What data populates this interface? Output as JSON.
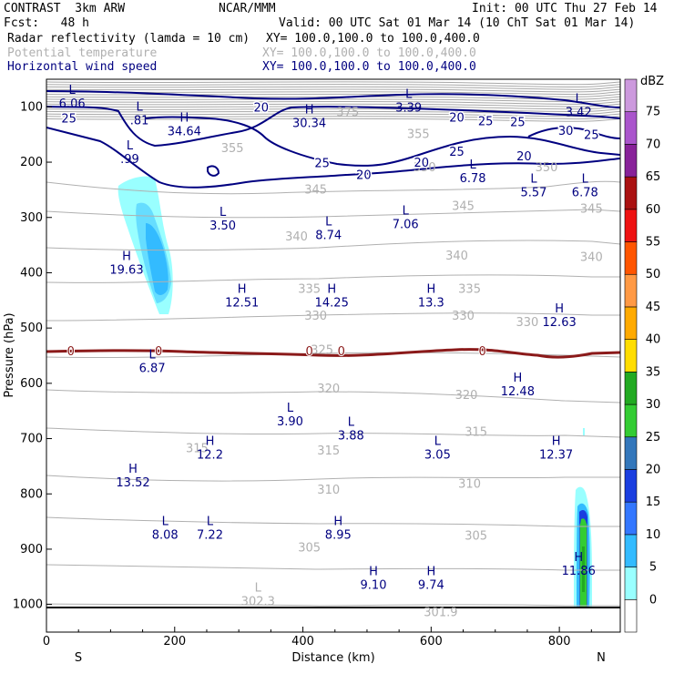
{
  "header": {
    "model_line": "CONTRAST  3km ARW",
    "org": "NCAR/MMM",
    "init": "Init: 00 UTC Thu 27 Feb 14",
    "fcst": "Fcst:   48 h",
    "valid": "Valid: 00 UTC Sat 01 Mar 14 (10 ChT Sat 01 Mar 14)",
    "fields": [
      {
        "name": "Radar reflectivity (lamda = 10 cm)",
        "xy": "XY= 100.0,100.0 to 100.0,400.0",
        "color": "#000000"
      },
      {
        "name": "Potential temperature",
        "xy": "XY= 100.0,100.0 to 100.0,400.0",
        "color": "#b0b0b0"
      },
      {
        "name": "Horizontal wind speed",
        "xy": "XY= 100.0,100.0 to 100.0,400.0",
        "color": "#000080"
      }
    ]
  },
  "chart_data": {
    "type": "cross-section",
    "xlabel": "Distance (km)",
    "ylabel": "Pressure (hPa)",
    "xlim": [
      0,
      895
    ],
    "ylim": [
      1050,
      50
    ],
    "x_ticks": [
      0,
      200,
      400,
      600,
      800
    ],
    "y_ticks": [
      100,
      200,
      300,
      400,
      500,
      600,
      700,
      800,
      900,
      1000
    ],
    "ends": {
      "left": "S",
      "right": "N"
    },
    "colorbar": {
      "unit": "dBZ",
      "levels": [
        "0",
        "5",
        "10",
        "15",
        "20",
        "25",
        "30",
        "35",
        "40",
        "45",
        "50",
        "55",
        "60",
        "65",
        "70",
        "75"
      ],
      "colors": [
        "#ffffff",
        "#99ffff",
        "#33bbff",
        "#3377ff",
        "#1a3ee0",
        "#3377bb",
        "#33cc33",
        "#22aa22",
        "#ffdd00",
        "#ffaa00",
        "#ff9944",
        "#ff5500",
        "#ee1111",
        "#aa1111",
        "#882299",
        "#aa55cc",
        "#cc99dd"
      ]
    },
    "theta_labels": [
      {
        "x": 470,
        "p": 110,
        "text": "375"
      },
      {
        "x": 580,
        "p": 150,
        "text": "355"
      },
      {
        "x": 290,
        "p": 175,
        "text": "355"
      },
      {
        "x": 780,
        "p": 210,
        "text": "350"
      },
      {
        "x": 590,
        "p": 210,
        "text": "350"
      },
      {
        "x": 420,
        "p": 250,
        "text": "345"
      },
      {
        "x": 650,
        "p": 280,
        "text": "345"
      },
      {
        "x": 850,
        "p": 285,
        "text": "345"
      },
      {
        "x": 390,
        "p": 335,
        "text": "340"
      },
      {
        "x": 640,
        "p": 370,
        "text": "340"
      },
      {
        "x": 850,
        "p": 372,
        "text": "340"
      },
      {
        "x": 410,
        "p": 430,
        "text": "335"
      },
      {
        "x": 660,
        "p": 430,
        "text": "335"
      },
      {
        "x": 420,
        "p": 478,
        "text": "330"
      },
      {
        "x": 650,
        "p": 478,
        "text": "330"
      },
      {
        "x": 750,
        "p": 490,
        "text": "330"
      },
      {
        "x": 430,
        "p": 540,
        "text": "325"
      },
      {
        "x": 440,
        "p": 610,
        "text": "320"
      },
      {
        "x": 655,
        "p": 622,
        "text": "320"
      },
      {
        "x": 670,
        "p": 688,
        "text": "315"
      },
      {
        "x": 440,
        "p": 722,
        "text": "315"
      },
      {
        "x": 235,
        "p": 718,
        "text": "315"
      },
      {
        "x": 440,
        "p": 793,
        "text": "310"
      },
      {
        "x": 660,
        "p": 782,
        "text": "310"
      },
      {
        "x": 670,
        "p": 876,
        "text": "305"
      },
      {
        "x": 410,
        "p": 898,
        "text": "305"
      }
    ],
    "wind_labels": [
      {
        "x": 35,
        "p": 120,
        "text": "25"
      },
      {
        "x": 335,
        "p": 100,
        "text": "20"
      },
      {
        "x": 640,
        "p": 118,
        "text": "20"
      },
      {
        "x": 685,
        "p": 125,
        "text": "25"
      },
      {
        "x": 735,
        "p": 127,
        "text": "25"
      },
      {
        "x": 810,
        "p": 142,
        "text": "30"
      },
      {
        "x": 850,
        "p": 150,
        "text": "25"
      },
      {
        "x": 640,
        "p": 180,
        "text": "25"
      },
      {
        "x": 430,
        "p": 201,
        "text": "25"
      },
      {
        "x": 585,
        "p": 200,
        "text": "20"
      },
      {
        "x": 745,
        "p": 188,
        "text": "20"
      },
      {
        "x": 495,
        "p": 222,
        "text": "20"
      }
    ],
    "zero_line_labels": [
      {
        "x": 38,
        "text": "0"
      },
      {
        "x": 175,
        "text": "0"
      },
      {
        "x": 410,
        "text": "0"
      },
      {
        "x": 460,
        "text": "0"
      },
      {
        "x": 680,
        "text": "0"
      }
    ],
    "extrema": [
      {
        "x": 40,
        "p": 80,
        "kind": "L",
        "value": "6.06",
        "color": "navy"
      },
      {
        "x": 145,
        "p": 110,
        "kind": "L",
        "value": ".81",
        "color": "navy"
      },
      {
        "x": 215,
        "p": 130,
        "kind": "H",
        "value": "34.64",
        "color": "navy"
      },
      {
        "x": 130,
        "p": 180,
        "kind": "L",
        "value": ".99",
        "color": "navy"
      },
      {
        "x": 410,
        "p": 115,
        "kind": "H",
        "value": "30.34",
        "color": "navy"
      },
      {
        "x": 565,
        "p": 87,
        "kind": "L",
        "value": "3.39",
        "color": "navy"
      },
      {
        "x": 830,
        "p": 95,
        "kind": "L",
        "value": "3.42",
        "color": "navy"
      },
      {
        "x": 665,
        "p": 215,
        "kind": "L",
        "value": "6.78",
        "color": "navy"
      },
      {
        "x": 760,
        "p": 240,
        "kind": "L",
        "value": "5.57",
        "color": "navy"
      },
      {
        "x": 840,
        "p": 240,
        "kind": "L",
        "value": "6.78",
        "color": "navy"
      },
      {
        "x": 275,
        "p": 300,
        "kind": "L",
        "value": "3.50",
        "color": "navy"
      },
      {
        "x": 440,
        "p": 318,
        "kind": "L",
        "value": "8.74",
        "color": "navy"
      },
      {
        "x": 560,
        "p": 298,
        "kind": "L",
        "value": "7.06",
        "color": "navy"
      },
      {
        "x": 125,
        "p": 380,
        "kind": "H",
        "value": "19.63",
        "color": "navy"
      },
      {
        "x": 305,
        "p": 440,
        "kind": "H",
        "value": "12.51",
        "color": "navy"
      },
      {
        "x": 445,
        "p": 440,
        "kind": "H",
        "value": "14.25",
        "color": "navy"
      },
      {
        "x": 600,
        "p": 440,
        "kind": "H",
        "value": "13.3",
        "color": "navy"
      },
      {
        "x": 800,
        "p": 475,
        "kind": "H",
        "value": "12.63",
        "color": "navy"
      },
      {
        "x": 165,
        "p": 558,
        "kind": "L",
        "value": "6.87",
        "color": "navy"
      },
      {
        "x": 735,
        "p": 600,
        "kind": "H",
        "value": "12.48",
        "color": "navy"
      },
      {
        "x": 380,
        "p": 655,
        "kind": "L",
        "value": "3.90",
        "color": "navy"
      },
      {
        "x": 475,
        "p": 680,
        "kind": "L",
        "value": "3.88",
        "color": "navy"
      },
      {
        "x": 255,
        "p": 715,
        "kind": "H",
        "value": "12.2",
        "color": "navy"
      },
      {
        "x": 610,
        "p": 715,
        "kind": "L",
        "value": "3.05",
        "color": "navy"
      },
      {
        "x": 795,
        "p": 715,
        "kind": "H",
        "value": "12.37",
        "color": "navy"
      },
      {
        "x": 135,
        "p": 765,
        "kind": "H",
        "value": "13.52",
        "color": "navy"
      },
      {
        "x": 185,
        "p": 860,
        "kind": "L",
        "value": "8.08",
        "color": "navy"
      },
      {
        "x": 255,
        "p": 860,
        "kind": "L",
        "value": "7.22",
        "color": "navy"
      },
      {
        "x": 455,
        "p": 860,
        "kind": "H",
        "value": "8.95",
        "color": "navy"
      },
      {
        "x": 510,
        "p": 950,
        "kind": "H",
        "value": "9.10",
        "color": "navy"
      },
      {
        "x": 600,
        "p": 950,
        "kind": "H",
        "value": "9.74",
        "color": "navy"
      },
      {
        "x": 830,
        "p": 925,
        "kind": "H",
        "value": "11.86",
        "color": "navy"
      },
      {
        "x": 330,
        "p": 980,
        "kind": "L",
        "value": "302.3",
        "color": "gray"
      },
      {
        "x": 615,
        "p": 1000,
        "kind": "",
        "value": "301.9",
        "color": "gray"
      }
    ]
  }
}
